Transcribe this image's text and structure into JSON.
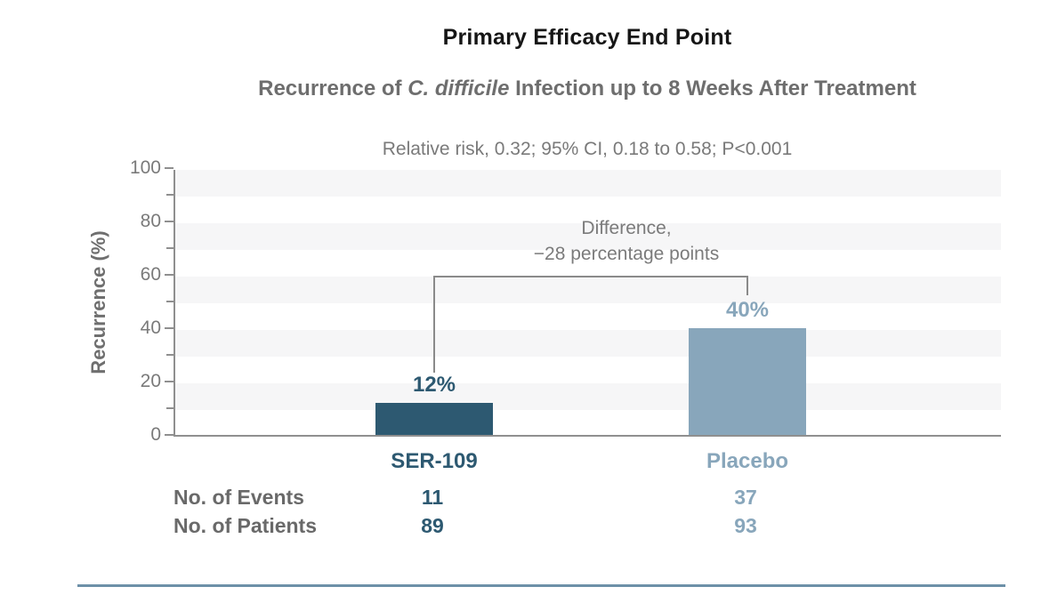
{
  "header": {
    "title": "Primary Efficacy End Point",
    "subtitle": {
      "prefix": "Recurrence of ",
      "italic": "C. difficile",
      "suffix": " Infection up to 8 Weeks After Treatment"
    },
    "stats_line": "Relative risk, 0.32; 95% CI, 0.18 to 0.58; P<0.001"
  },
  "chart": {
    "y_axis_label": "Recurrence (%)",
    "difference": {
      "line1": "Difference,",
      "line2": "−28 percentage points"
    },
    "bars": [
      {
        "name": "SER-109",
        "value_label": "12%"
      },
      {
        "name": "Placebo",
        "value_label": "40%"
      }
    ]
  },
  "table": {
    "rows": [
      {
        "label": "No. of Events",
        "values": [
          "11",
          "37"
        ]
      },
      {
        "label": "No. of Patients",
        "values": [
          "89",
          "93"
        ]
      }
    ]
  },
  "colors": {
    "ser109_dark_blue": "#2d5971",
    "placebo_light_blue": "#88a6bb",
    "stripe_gray": "#f6f6f7",
    "axis_gray": "#8f8f8f",
    "heading_gray": "#6e6e6e",
    "bottom_rule_blue": "#6d90a8"
  },
  "chart_data": {
    "type": "bar",
    "title": "Primary Efficacy End Point",
    "subtitle": "Recurrence of C. difficile Infection up to 8 Weeks After Treatment",
    "stats_annotation": "Relative risk, 0.32; 95% CI, 0.18 to 0.58; P<0.001",
    "difference_annotation": "Difference, −28 percentage points",
    "categories": [
      "SER-109",
      "Placebo"
    ],
    "values": [
      12,
      40
    ],
    "value_labels": [
      "12%",
      "40%"
    ],
    "no_of_events": [
      11,
      37
    ],
    "no_of_patients": [
      89,
      93
    ],
    "ylabel": "Recurrence (%)",
    "xlabel": "",
    "ylim": [
      0,
      100
    ],
    "yticks": [
      0,
      20,
      40,
      60,
      80,
      100
    ],
    "minor_yticks": [
      10,
      30,
      50,
      70,
      90
    ],
    "bar_colors": [
      "#2d5971",
      "#88a6bb"
    ],
    "grid": "alternating light-gray horizontal bands, 10%-tall",
    "legend_position": "none"
  }
}
